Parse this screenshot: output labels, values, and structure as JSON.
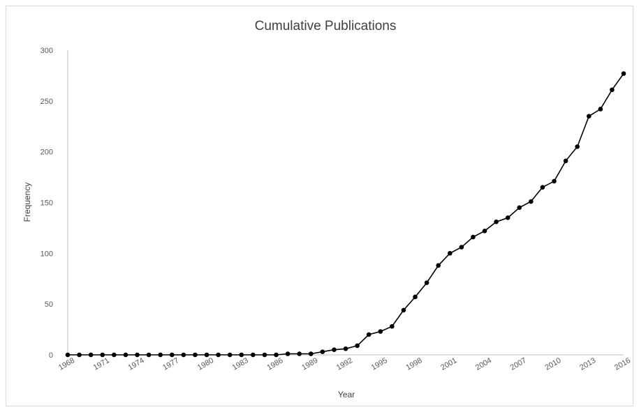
{
  "chart_data": {
    "type": "line",
    "title": "Cumulative Publications",
    "xlabel": "Year",
    "ylabel": "Frequency",
    "ylim": [
      0,
      300
    ],
    "yticks": [
      0,
      50,
      100,
      150,
      200,
      250,
      300
    ],
    "xlim": [
      1968,
      2016
    ],
    "xtick_labels": [
      "1968",
      "1971",
      "1974",
      "1977",
      "1980",
      "1983",
      "1986",
      "1989",
      "1992",
      "1995",
      "1998",
      "2001",
      "2004",
      "2007",
      "2010",
      "2013",
      "2016"
    ],
    "grid": false,
    "legend": "none",
    "series": [
      {
        "color": "#000000",
        "marker": "circle",
        "x": [
          1968,
          1969,
          1970,
          1971,
          1972,
          1973,
          1974,
          1975,
          1976,
          1977,
          1978,
          1979,
          1980,
          1981,
          1982,
          1983,
          1984,
          1985,
          1986,
          1987,
          1988,
          1989,
          1990,
          1991,
          1992,
          1993,
          1994,
          1995,
          1996,
          1997,
          1998,
          1999,
          2000,
          2001,
          2002,
          2003,
          2004,
          2005,
          2006,
          2007,
          2008,
          2009,
          2010,
          2011,
          2012,
          2013,
          2014,
          2015,
          2016
        ],
        "y": [
          0,
          0,
          0,
          0,
          0,
          0,
          0,
          0,
          0,
          0,
          0,
          0,
          0,
          0,
          0,
          0,
          0,
          0,
          0,
          1,
          1,
          1,
          3,
          5,
          6,
          9,
          20,
          23,
          28,
          44,
          57,
          71,
          88,
          100,
          106,
          116,
          122,
          131,
          135,
          145,
          151,
          165,
          171,
          191,
          205,
          235,
          242,
          261,
          277
        ]
      }
    ]
  }
}
